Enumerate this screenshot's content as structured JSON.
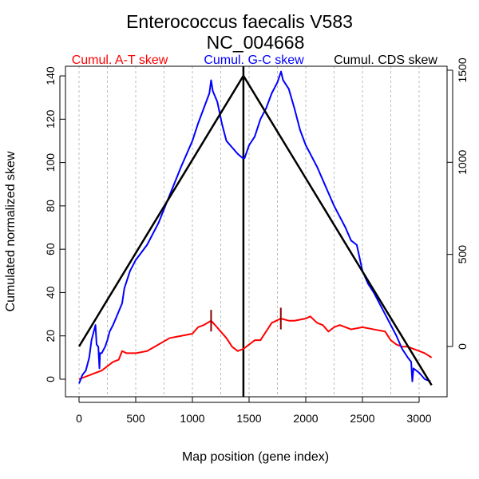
{
  "chart_data": {
    "type": "line",
    "title": "Enterococcus faecalis V583",
    "subtitle": "NC_004668",
    "xlabel": "Map position (gene index)",
    "ylabel": "Cumulated normalized skew",
    "xlim": [
      -120,
      3270
    ],
    "ylim": [
      -8,
      144
    ],
    "right_ylim": [
      -290,
      1520
    ],
    "x_ticks": [
      0,
      500,
      1000,
      1500,
      2000,
      2500,
      3000
    ],
    "y_ticks": [
      0,
      20,
      40,
      60,
      80,
      100,
      120,
      140
    ],
    "right_y_ticks": [
      0,
      500,
      1000,
      1500
    ],
    "grid_x": [
      0,
      250,
      500,
      750,
      1000,
      1250,
      1500,
      1750,
      2000,
      2250,
      2500,
      2750,
      3000
    ],
    "legend": [
      {
        "label": "Cumul. A-T skew",
        "color": "#ff0000"
      },
      {
        "label": "Cumul. G-C skew",
        "color": "#0000ff"
      },
      {
        "label": "Cumul. CDS skew",
        "color": "#000000"
      }
    ],
    "origin_marker": 1450,
    "at_markers": [
      1165,
      1780
    ],
    "series": [
      {
        "name": "Cumul. A-T skew",
        "color": "#ff0000",
        "axis": "left",
        "x": [
          0,
          100,
          150,
          200,
          250,
          300,
          350,
          380,
          420,
          500,
          600,
          700,
          800,
          900,
          1000,
          1050,
          1100,
          1165,
          1200,
          1250,
          1300,
          1350,
          1400,
          1450,
          1500,
          1550,
          1600,
          1650,
          1700,
          1780,
          1850,
          1900,
          2000,
          2040,
          2100,
          2150,
          2200,
          2250,
          2300,
          2350,
          2400,
          2500,
          2600,
          2700,
          2750,
          2800,
          2850,
          2900,
          2950,
          3000,
          3050,
          3110
        ],
        "y": [
          0,
          2,
          3,
          4,
          6,
          8,
          9,
          13,
          12,
          12,
          13,
          16,
          19,
          20,
          21,
          24,
          25,
          27,
          25,
          22,
          19,
          15,
          13,
          14,
          16,
          18,
          18,
          22,
          26,
          28,
          27,
          27,
          28,
          29,
          26,
          25,
          22,
          24,
          25,
          24,
          23,
          24,
          23,
          22,
          18,
          16,
          15,
          15,
          14,
          13,
          12,
          10
        ]
      },
      {
        "name": "Cumul. G-C skew",
        "color": "#0000ff",
        "axis": "left",
        "x": [
          0,
          30,
          60,
          90,
          110,
          130,
          145,
          155,
          170,
          180,
          185,
          200,
          230,
          250,
          270,
          300,
          340,
          380,
          400,
          450,
          500,
          600,
          700,
          800,
          900,
          950,
          1000,
          1050,
          1100,
          1150,
          1165,
          1180,
          1220,
          1260,
          1300,
          1350,
          1400,
          1444,
          1460,
          1500,
          1550,
          1600,
          1650,
          1700,
          1750,
          1782,
          1800,
          1850,
          1900,
          1950,
          2000,
          2050,
          2100,
          2150,
          2200,
          2250,
          2300,
          2350,
          2400,
          2450,
          2500,
          2550,
          2600,
          2650,
          2700,
          2750,
          2800,
          2850,
          2900,
          2930,
          2940,
          2950,
          3000,
          3050,
          3100
        ],
        "y": [
          -2,
          2,
          4,
          10,
          18,
          22,
          25,
          16,
          15,
          5,
          12,
          12,
          15,
          18,
          22,
          25,
          30,
          35,
          42,
          50,
          55,
          62,
          72,
          85,
          98,
          104,
          110,
          118,
          125,
          132,
          138,
          133,
          128,
          118,
          110,
          107,
          104,
          102,
          102,
          108,
          112,
          120,
          125,
          132,
          137,
          142,
          138,
          134,
          125,
          115,
          108,
          103,
          98,
          92,
          86,
          80,
          75,
          70,
          64,
          62,
          50,
          44,
          40,
          35,
          30,
          25,
          20,
          14,
          10,
          8,
          -1,
          5,
          3,
          0,
          -1
        ]
      },
      {
        "name": "Cumul. CDS skew",
        "color": "#000000",
        "axis": "right",
        "x": [
          0,
          1450,
          3110
        ],
        "y": [
          0,
          1470,
          -210
        ]
      }
    ]
  }
}
